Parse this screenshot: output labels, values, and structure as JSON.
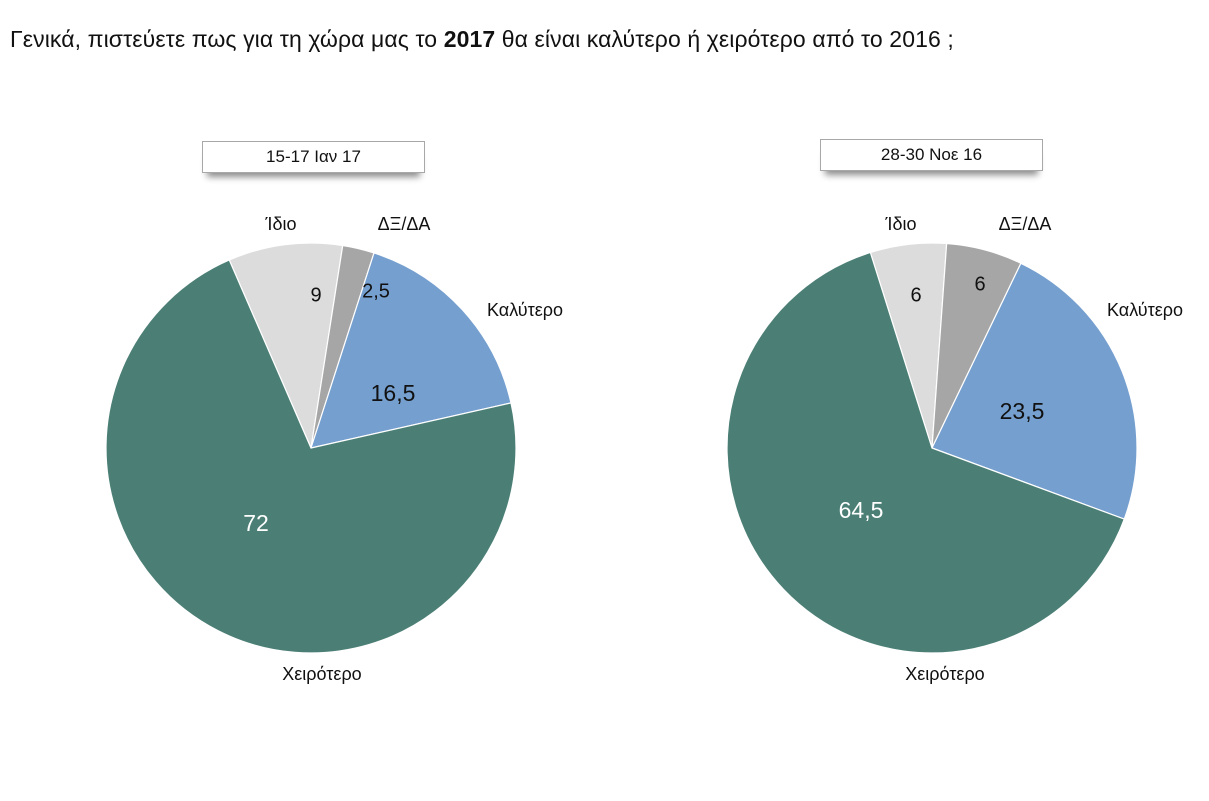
{
  "title": {
    "part1": "Γενικά, πιστεύετε πως για τη χώρα μας το ",
    "bold": "2017",
    "part2": " θα είναι καλύτερο ή χειρότερο από το 2016 ;"
  },
  "chart_data": [
    {
      "type": "pie",
      "title": "15-17 Ιαν 17",
      "slices": [
        {
          "label": "Ίδιο",
          "value": 9,
          "value_label": "9",
          "color": "#dcdcdc",
          "text_color": "#111111"
        },
        {
          "label": "ΔΞ/ΔΑ",
          "value": 2.5,
          "value_label": "2,5",
          "color": "#a6a6a6",
          "text_color": "#111111"
        },
        {
          "label": "Καλύτερο",
          "value": 16.5,
          "value_label": "16,5",
          "color": "#759fcf",
          "text_color": "#111111"
        },
        {
          "label": "Χειρότερο",
          "value": 72,
          "value_label": "72",
          "color": "#4b7f75",
          "text_color": "#ffffff"
        }
      ]
    },
    {
      "type": "pie",
      "title": "28-30 Νοε 16",
      "slices": [
        {
          "label": "Ίδιο",
          "value": 6,
          "value_label": "6",
          "color": "#dcdcdc",
          "text_color": "#111111"
        },
        {
          "label": "ΔΞ/ΔΑ",
          "value": 6,
          "value_label": "6",
          "color": "#a6a6a6",
          "text_color": "#111111"
        },
        {
          "label": "Καλύτερο",
          "value": 23.5,
          "value_label": "23,5",
          "color": "#759fcf",
          "text_color": "#111111"
        },
        {
          "label": "Χειρότερο",
          "value": 64.5,
          "value_label": "64,5",
          "color": "#4b7f75",
          "text_color": "#ffffff"
        }
      ]
    }
  ]
}
